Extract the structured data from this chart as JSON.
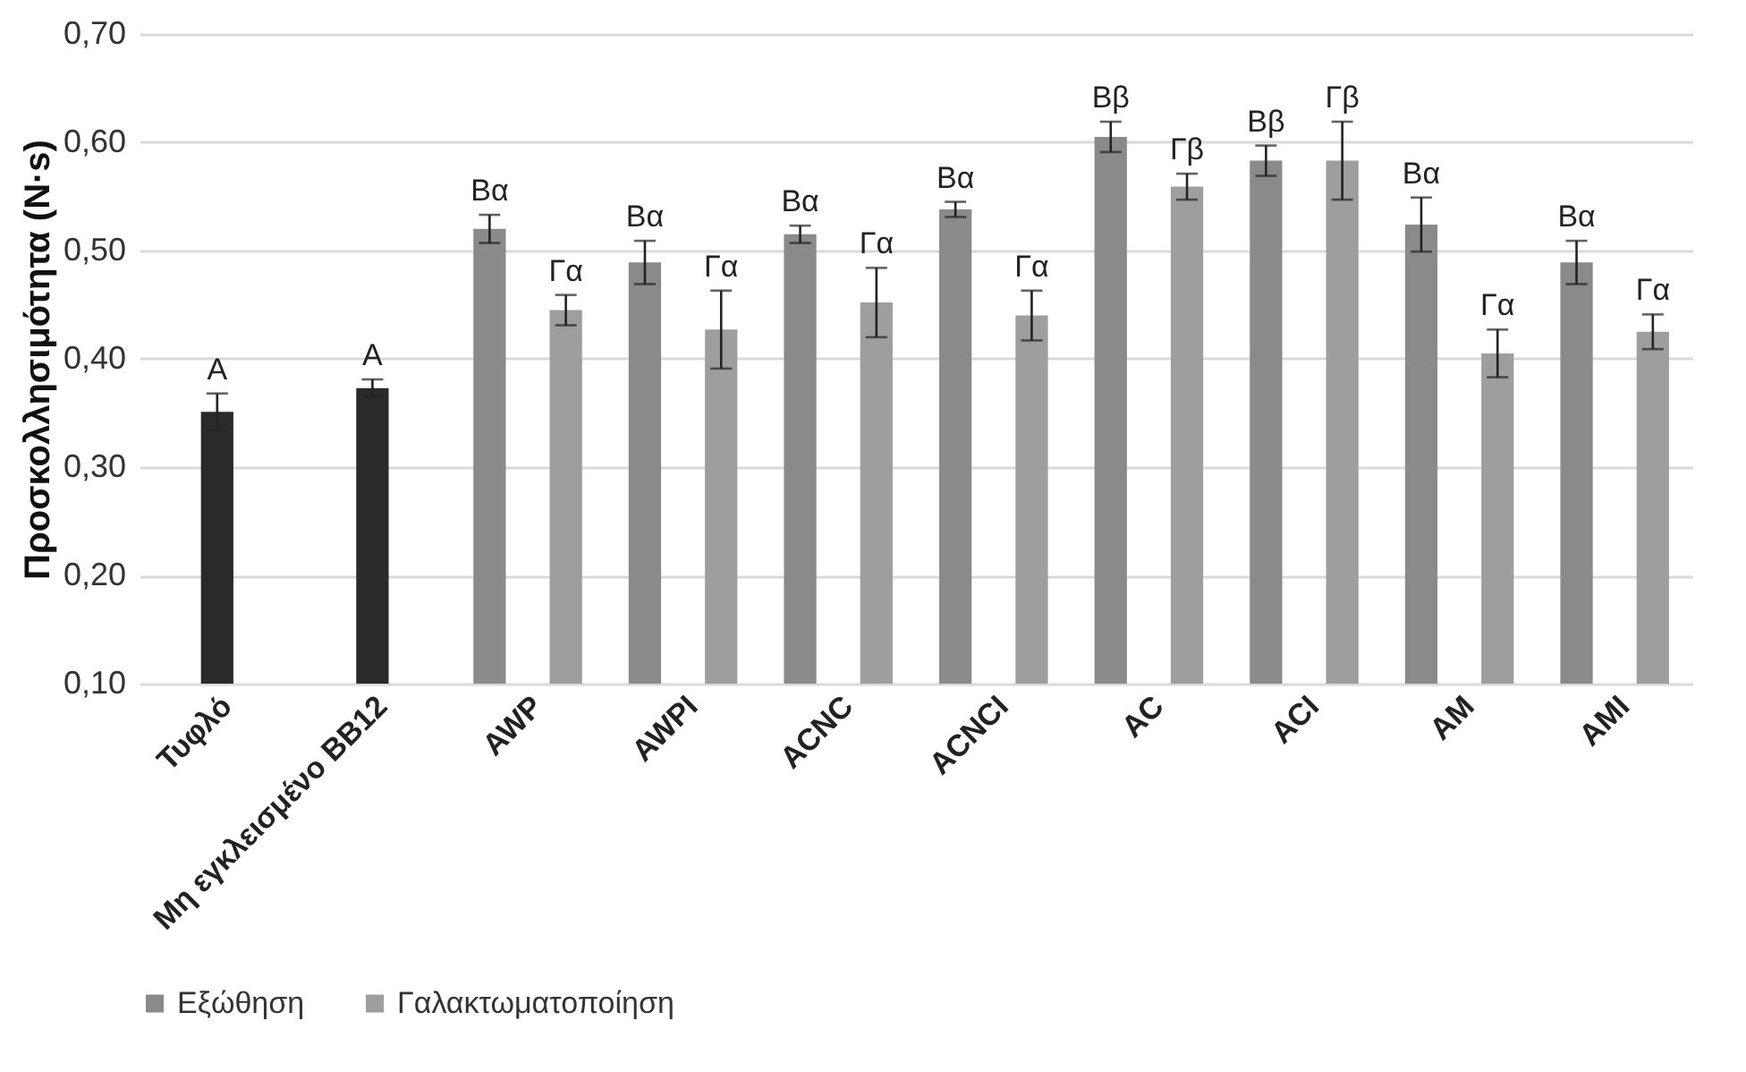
{
  "chart_data": {
    "type": "bar",
    "ylabel": "Προσκολλησιμότητα (N·s)",
    "categories": [
      "Τυφλό",
      "Μη εγκλεισμένο BB12",
      "AWP",
      "AWPI",
      "ACNC",
      "ACNCI",
      "AC",
      "ACI",
      "AM",
      "AMI"
    ],
    "series": [
      {
        "name": "Εξώθηση",
        "color": "#8a8a8a",
        "colors": [
          "#2a2a2a",
          "#2a2a2a",
          "#8a8a8a",
          "#8a8a8a",
          "#8a8a8a",
          "#8a8a8a",
          "#8a8a8a",
          "#8a8a8a",
          "#8a8a8a",
          "#8a8a8a"
        ],
        "values": [
          0.351,
          0.373,
          0.52,
          0.489,
          0.515,
          0.538,
          0.605,
          0.583,
          0.524,
          0.489
        ],
        "errors": [
          0.017,
          0.008,
          0.013,
          0.02,
          0.008,
          0.007,
          0.014,
          0.014,
          0.025,
          0.02
        ]
      },
      {
        "name": "Γαλακτωματοποίηση",
        "color": "#9e9e9e",
        "values": [
          null,
          null,
          0.445,
          0.427,
          0.452,
          0.44,
          0.559,
          0.583,
          0.405,
          0.425
        ],
        "errors": [
          null,
          null,
          0.014,
          0.036,
          0.032,
          0.023,
          0.012,
          0.036,
          0.022,
          0.016
        ]
      }
    ],
    "ylim": [
      0.1,
      0.7
    ],
    "yticks": [
      {
        "value": 0.1,
        "label": "0,10"
      },
      {
        "value": 0.2,
        "label": "0,20"
      },
      {
        "value": 0.3,
        "label": "0,30"
      },
      {
        "value": 0.4,
        "label": "0,40"
      },
      {
        "value": 0.5,
        "label": "0,50"
      },
      {
        "value": 0.6,
        "label": "0,60"
      },
      {
        "value": 0.7,
        "label": "0,70"
      }
    ],
    "grid": "y",
    "legend": "bottom",
    "annotations": [
      "A",
      "A",
      "Βα",
      "Γα",
      "Βα",
      "Γα",
      "Βα",
      "Γα",
      "Βα",
      "Γα",
      "Ββ",
      "Γβ",
      "Ββ",
      "Γβ",
      "Βα",
      "Γα",
      "Βα",
      "Γα"
    ]
  }
}
